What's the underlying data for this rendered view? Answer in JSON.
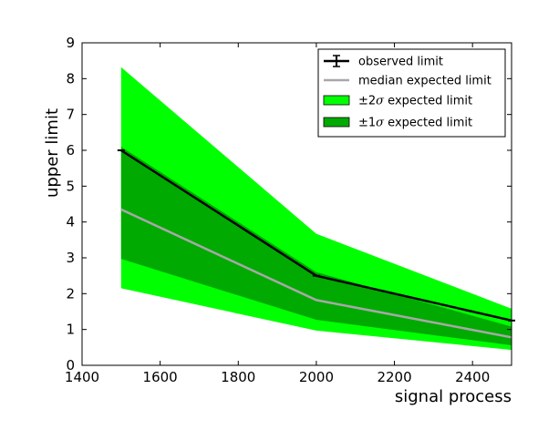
{
  "chart_data": {
    "type": "line",
    "xlabel": "signal process",
    "ylabel": "upper limit",
    "xlim": [
      1400,
      2500
    ],
    "ylim": [
      0,
      9
    ],
    "xticks": [
      "1400",
      "1600",
      "1800",
      "2000",
      "2200",
      "2400"
    ],
    "yticks": [
      "0",
      "1",
      "2",
      "3",
      "4",
      "5",
      "6",
      "7",
      "8",
      "9"
    ],
    "x": [
      1500,
      2000,
      2500
    ],
    "observed": [
      6.0,
      2.5,
      1.25
    ],
    "expected_median": [
      4.35,
      1.82,
      0.78
    ],
    "band_1sigma": {
      "low": [
        2.97,
        1.27,
        0.56
      ],
      "high": [
        6.1,
        2.6,
        1.08
      ]
    },
    "band_2sigma": {
      "low": [
        2.15,
        0.97,
        0.43
      ],
      "high": [
        8.32,
        3.67,
        1.58
      ]
    },
    "legend": {
      "position": "top-right",
      "entries": [
        {
          "key": "observed",
          "label": "observed limit"
        },
        {
          "key": "median",
          "label": "median expected limit"
        },
        {
          "key": "band2",
          "prefix": "±2",
          "sym": "σ",
          "label": " expected limit"
        },
        {
          "key": "band1",
          "prefix": "±1",
          "sym": "σ",
          "label": " expected limit"
        }
      ]
    },
    "colors": {
      "observed": "#000000",
      "median": "#a8a8a8",
      "band_2sigma": "#00ff00",
      "band_1sigma": "#00aa00"
    }
  }
}
